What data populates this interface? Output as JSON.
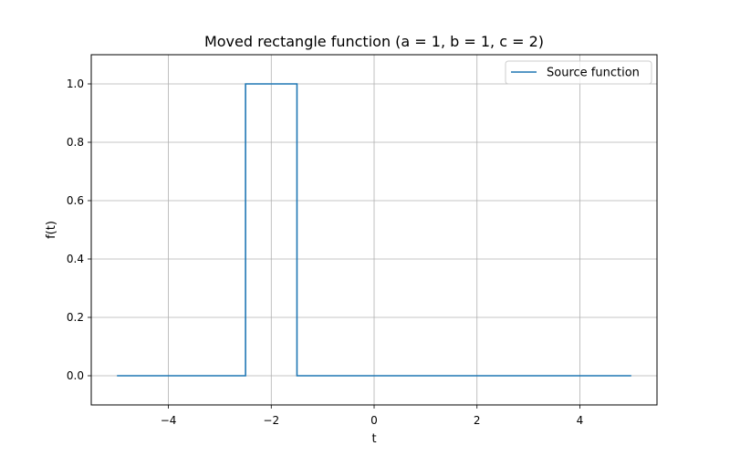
{
  "chart_data": {
    "type": "line",
    "title": "Moved rectangle function (a = 1, b = 1, c = 2)",
    "xlabel": "t",
    "ylabel": "f(t)",
    "xlim": [
      -5.5,
      5.5
    ],
    "ylim": [
      -0.1,
      1.1
    ],
    "xticks": [
      -4,
      -2,
      0,
      2,
      4
    ],
    "xtick_labels": [
      "−4",
      "−2",
      "0",
      "2",
      "4"
    ],
    "yticks": [
      0.0,
      0.2,
      0.4,
      0.6,
      0.8,
      1.0
    ],
    "ytick_labels": [
      "0.0",
      "0.2",
      "0.4",
      "0.6",
      "0.8",
      "1.0"
    ],
    "grid": true,
    "legend_position": "top-right",
    "series": [
      {
        "name": "Source function",
        "color": "#1f77b4",
        "x": [
          -5,
          -2.5,
          -2.5,
          -1.5,
          -1.5,
          5
        ],
        "y": [
          0,
          0,
          1,
          1,
          0,
          0
        ]
      }
    ]
  }
}
